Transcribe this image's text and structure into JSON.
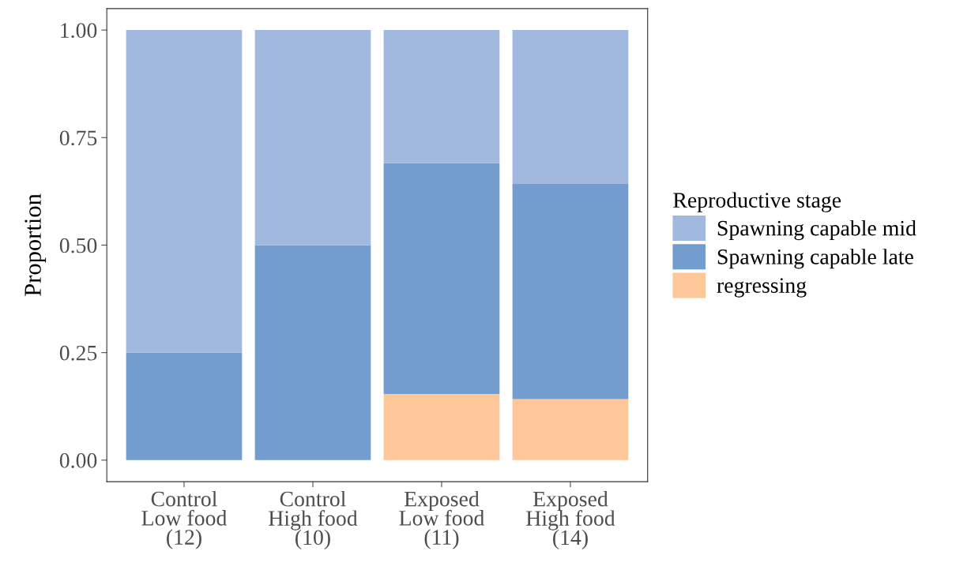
{
  "chart_data": {
    "type": "bar",
    "stacked": true,
    "ylabel": "Proportion",
    "legend_title": "Reproductive stage",
    "legend": "right",
    "categories": [
      "Control\nLow food\n(12)",
      "Control\nHigh food\n(10)",
      "Exposed\nLow food\n(11)",
      "Exposed\nHigh food\n(14)"
    ],
    "series": [
      {
        "name": "regressing",
        "color": "#fec79a",
        "values": [
          0,
          0,
          0.154,
          0.142
        ]
      },
      {
        "name": "Spawning capable late",
        "color": "#739dcf",
        "values": [
          0.25,
          0.5,
          0.537,
          0.5
        ]
      },
      {
        "name": "Spawning capable mid",
        "color": "#a1b9df",
        "values": [
          0.75,
          0.5,
          0.309,
          0.358
        ]
      }
    ],
    "ylim": [
      -0.05,
      1.05
    ],
    "yticks": [
      {
        "value": 0,
        "label": "0.00"
      },
      {
        "value": 0.25,
        "label": "0.25"
      },
      {
        "value": 0.5,
        "label": "0.50"
      },
      {
        "value": 0.75,
        "label": "0.75"
      },
      {
        "value": 1,
        "label": "1.00"
      }
    ],
    "grid": false
  }
}
